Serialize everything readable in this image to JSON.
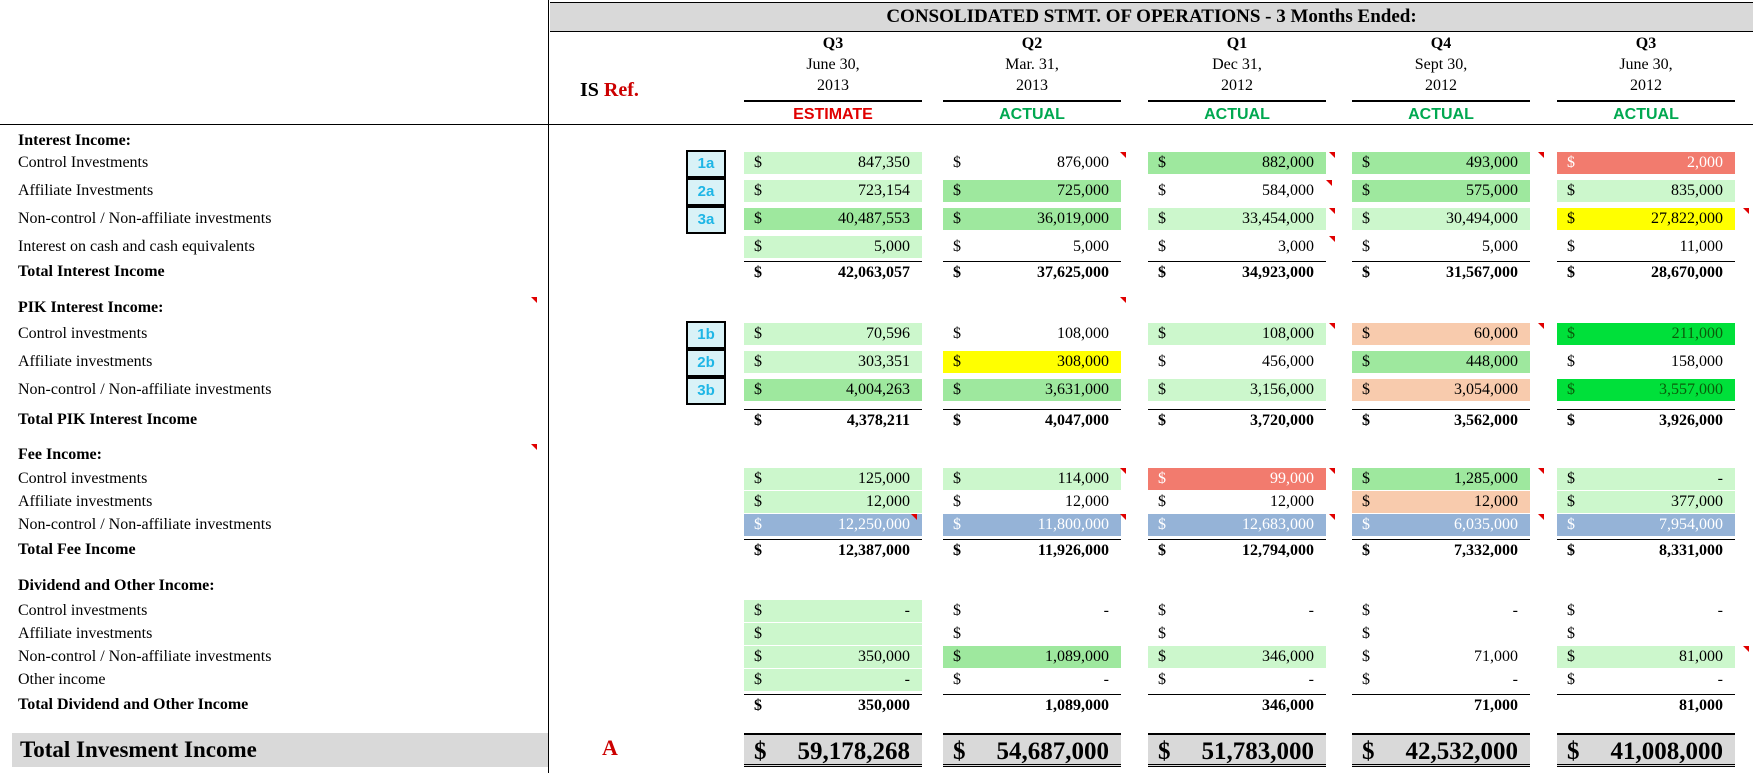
{
  "title": "CONSOLIDATED STMT. OF OPERATIONS - 3 Months Ended:",
  "is_ref": {
    "prefix": "IS",
    "suffix": "Ref."
  },
  "columns": [
    {
      "q": "Q3",
      "date": "June 30,",
      "year": "2013",
      "status": "ESTIMATE",
      "status_color": "#e00000"
    },
    {
      "q": "Q2",
      "date": "Mar. 31,",
      "year": "2013",
      "status": "ACTUAL",
      "status_color": "#00a850"
    },
    {
      "q": "Q1",
      "date": "Dec 31,",
      "year": "2012",
      "status": "ACTUAL",
      "status_color": "#00a850"
    },
    {
      "q": "Q4",
      "date": "Sept 30,",
      "year": "2012",
      "status": "ACTUAL",
      "status_color": "#00a850"
    },
    {
      "q": "Q3",
      "date": "June 30,",
      "year": "2012",
      "status": "ACTUAL",
      "status_color": "#00a850"
    }
  ],
  "colors": {
    "light_green": "#ccf7cc",
    "mid_green": "#9ee89e",
    "bright_green": "#00e03a",
    "red": "#f27b6e",
    "yellow": "#ffff00",
    "peach": "#f8cbad",
    "blue": "#95b3d7",
    "grey": "#d9d9d9"
  },
  "rows": [
    {
      "label": "Interest Income:",
      "kind": "section"
    },
    {
      "label": "Control Investments",
      "ref": "1a",
      "dollar": [
        "$",
        "$",
        "$",
        "$",
        "$"
      ],
      "values": [
        "847,350",
        "876,000",
        "882,000",
        "493,000",
        "2,000"
      ],
      "fills": [
        "light_green",
        "",
        "mid_green",
        "mid_green",
        "red"
      ]
    },
    {
      "label": "Affiliate Investments",
      "ref": "2a",
      "dollar": [
        "$",
        "$",
        "$",
        "$",
        "$"
      ],
      "values": [
        "723,154",
        "725,000",
        "584,000",
        "575,000",
        "835,000"
      ],
      "fills": [
        "light_green",
        "mid_green",
        "",
        "mid_green",
        "light_green"
      ]
    },
    {
      "label": "Non-control / Non-affiliate investments",
      "ref": "3a",
      "dollar": [
        "$",
        "$",
        "$",
        "$",
        "$"
      ],
      "values": [
        "40,487,553",
        "36,019,000",
        "33,454,000",
        "30,494,000",
        "27,822,000"
      ],
      "fills": [
        "mid_green",
        "mid_green",
        "light_green",
        "light_green",
        "yellow"
      ]
    },
    {
      "label": "Interest on cash and cash equivalents",
      "dollar": [
        "$",
        "$",
        "$",
        "$",
        "$"
      ],
      "values": [
        "5,000",
        "5,000",
        "3,000",
        "5,000",
        "11,000"
      ],
      "fills": [
        "light_green",
        "",
        "",
        "",
        ""
      ]
    },
    {
      "label": "Total Interest Income",
      "kind": "total",
      "dollar": [
        "$",
        "$",
        "$",
        "$",
        "$"
      ],
      "values": [
        "42,063,057",
        "37,625,000",
        "34,923,000",
        "31,567,000",
        "28,670,000"
      ]
    },
    {
      "label": "PIK Interest Income:",
      "kind": "section"
    },
    {
      "label": "Control investments",
      "ref": "1b",
      "dollar": [
        "$",
        "$",
        "$",
        "$",
        "$"
      ],
      "values": [
        "70,596",
        "108,000",
        "108,000",
        "60,000",
        "211,000"
      ],
      "fills": [
        "light_green",
        "",
        "light_green",
        "peach",
        "bright_green"
      ]
    },
    {
      "label": "Affiliate investments",
      "ref": "2b",
      "dollar": [
        "$",
        "$",
        "$",
        "$",
        "$"
      ],
      "values": [
        "303,351",
        "308,000",
        "456,000",
        "448,000",
        "158,000"
      ],
      "fills": [
        "light_green",
        "yellow",
        "",
        "mid_green",
        ""
      ]
    },
    {
      "label": "Non-control / Non-affiliate investments",
      "ref": "3b",
      "dollar": [
        "$",
        "$",
        "$",
        "$",
        "$"
      ],
      "values": [
        "4,004,263",
        "3,631,000",
        "3,156,000",
        "3,054,000",
        "3,557,000"
      ],
      "fills": [
        "mid_green",
        "mid_green",
        "light_green",
        "peach",
        "bright_green"
      ]
    },
    {
      "label": "Total PIK Interest Income",
      "kind": "total",
      "dollar": [
        "$",
        "$",
        "$",
        "$",
        "$"
      ],
      "values": [
        "4,378,211",
        "4,047,000",
        "3,720,000",
        "3,562,000",
        "3,926,000"
      ]
    },
    {
      "label": "Fee Income:",
      "kind": "section"
    },
    {
      "label": "Control investments",
      "dollar": [
        "$",
        "$",
        "$",
        "$",
        "$"
      ],
      "values": [
        "125,000",
        "114,000",
        "99,000",
        "1,285,000",
        "-"
      ],
      "fills": [
        "light_green",
        "light_green",
        "red",
        "mid_green",
        "light_green"
      ]
    },
    {
      "label": "Affiliate investments",
      "dollar": [
        "$",
        "$",
        "$",
        "$",
        "$"
      ],
      "values": [
        "12,000",
        "12,000",
        "12,000",
        "12,000",
        "377,000"
      ],
      "fills": [
        "light_green",
        "",
        "",
        "peach",
        "light_green"
      ]
    },
    {
      "label": "Non-control / Non-affiliate investments",
      "dollar": [
        "$",
        "$",
        "$",
        "$",
        "$"
      ],
      "values": [
        "12,250,000",
        "11,800,000",
        "12,683,000",
        "6,035,000",
        "7,954,000"
      ],
      "fills": [
        "blue",
        "blue",
        "blue",
        "blue",
        "blue"
      ]
    },
    {
      "label": "Total Fee Income",
      "kind": "total",
      "dollar": [
        "$",
        "$",
        "$",
        "$",
        "$"
      ],
      "values": [
        "12,387,000",
        "11,926,000",
        "12,794,000",
        "7,332,000",
        "8,331,000"
      ]
    },
    {
      "label": "Dividend and Other Income:",
      "kind": "section"
    },
    {
      "label": "Control investments",
      "dollar": [
        "$",
        "$",
        "$",
        "$",
        "$"
      ],
      "values": [
        "-",
        "-",
        "-",
        "-",
        "-"
      ],
      "fills": [
        "light_green",
        "",
        "",
        "",
        ""
      ]
    },
    {
      "label": "Affiliate investments",
      "dollar": [
        "$",
        "$",
        "$",
        "$",
        "$"
      ],
      "values": [
        "",
        "",
        "",
        "",
        ""
      ],
      "fills": [
        "light_green",
        "",
        "",
        "",
        ""
      ]
    },
    {
      "label": "Non-control / Non-affiliate investments",
      "dollar": [
        "$",
        "$",
        "$",
        "$",
        "$"
      ],
      "values": [
        "350,000",
        "1,089,000",
        "346,000",
        "71,000",
        "81,000"
      ],
      "fills": [
        "light_green",
        "mid_green",
        "light_green",
        "",
        "light_green"
      ]
    },
    {
      "label": "Other income",
      "dollar": [
        "$",
        "$",
        "$",
        "$",
        "$"
      ],
      "values": [
        "-",
        "-",
        "-",
        "-",
        "-"
      ],
      "fills": [
        "light_green",
        "",
        "",
        "",
        ""
      ]
    },
    {
      "label": "Total Dividend and Other Income",
      "kind": "total",
      "dollar": [
        "$",
        "",
        "",
        "",
        ""
      ],
      "values": [
        "350,000",
        "1,089,000",
        "346,000",
        "71,000",
        "81,000"
      ]
    }
  ],
  "total_investment_income": {
    "label": "Total Invesment Income",
    "ref": "A",
    "dollar": [
      "$",
      "$",
      "$",
      "$",
      "$"
    ],
    "values": [
      "59,178,268",
      "54,687,000",
      "51,783,000",
      "42,532,000",
      "41,008,000"
    ]
  }
}
